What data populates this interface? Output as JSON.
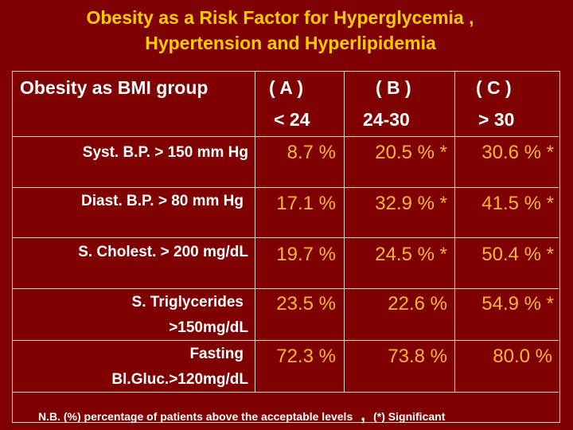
{
  "title": {
    "line1": "Obesity as a Risk Factor for Hyperglycemia ,",
    "line2": "Hypertension and Hyperlipidemia"
  },
  "table": {
    "header": {
      "label": "Obesity as BMI group",
      "columns": [
        {
          "group": "( A )",
          "range": "< 24"
        },
        {
          "group": "( B )",
          "range": "24-30"
        },
        {
          "group": "( C )",
          "range": "> 30"
        }
      ]
    },
    "rows": [
      {
        "label1": "Syst. B.P. > 150 mm Hg",
        "label2": "",
        "values": [
          "8.7 %",
          "20.5 % *",
          "30.6 % *"
        ]
      },
      {
        "label1": "Diast. B.P. > 80 mm Hg",
        "label2": "",
        "values": [
          "17.1 %",
          "32.9 % *",
          "41.5 % *"
        ]
      },
      {
        "label1": "S. Cholest. > 200 mg/dL",
        "label2": "",
        "values": [
          "19.7 %",
          "24.5 % *",
          "50.4 % *"
        ]
      },
      {
        "label1": "S. Triglycerides",
        "label2": ">150mg/dL",
        "values": [
          "23.5 %",
          "22.6 %",
          "54.9 % *"
        ]
      },
      {
        "label1": "Fasting",
        "label2": "Bl.Gluc.>120mg/dL",
        "values": [
          "72.3 %",
          "73.8 %",
          "80.0 %"
        ]
      }
    ],
    "footnote": {
      "text1": "N.B. (%) percentage of patients above the acceptable levels",
      "comma": ",",
      "text2": "(*) Significant"
    }
  },
  "colors": {
    "background": "#7f0000",
    "title": "#ffcc00",
    "values": "#ffb830",
    "labels": "#ffffff"
  }
}
